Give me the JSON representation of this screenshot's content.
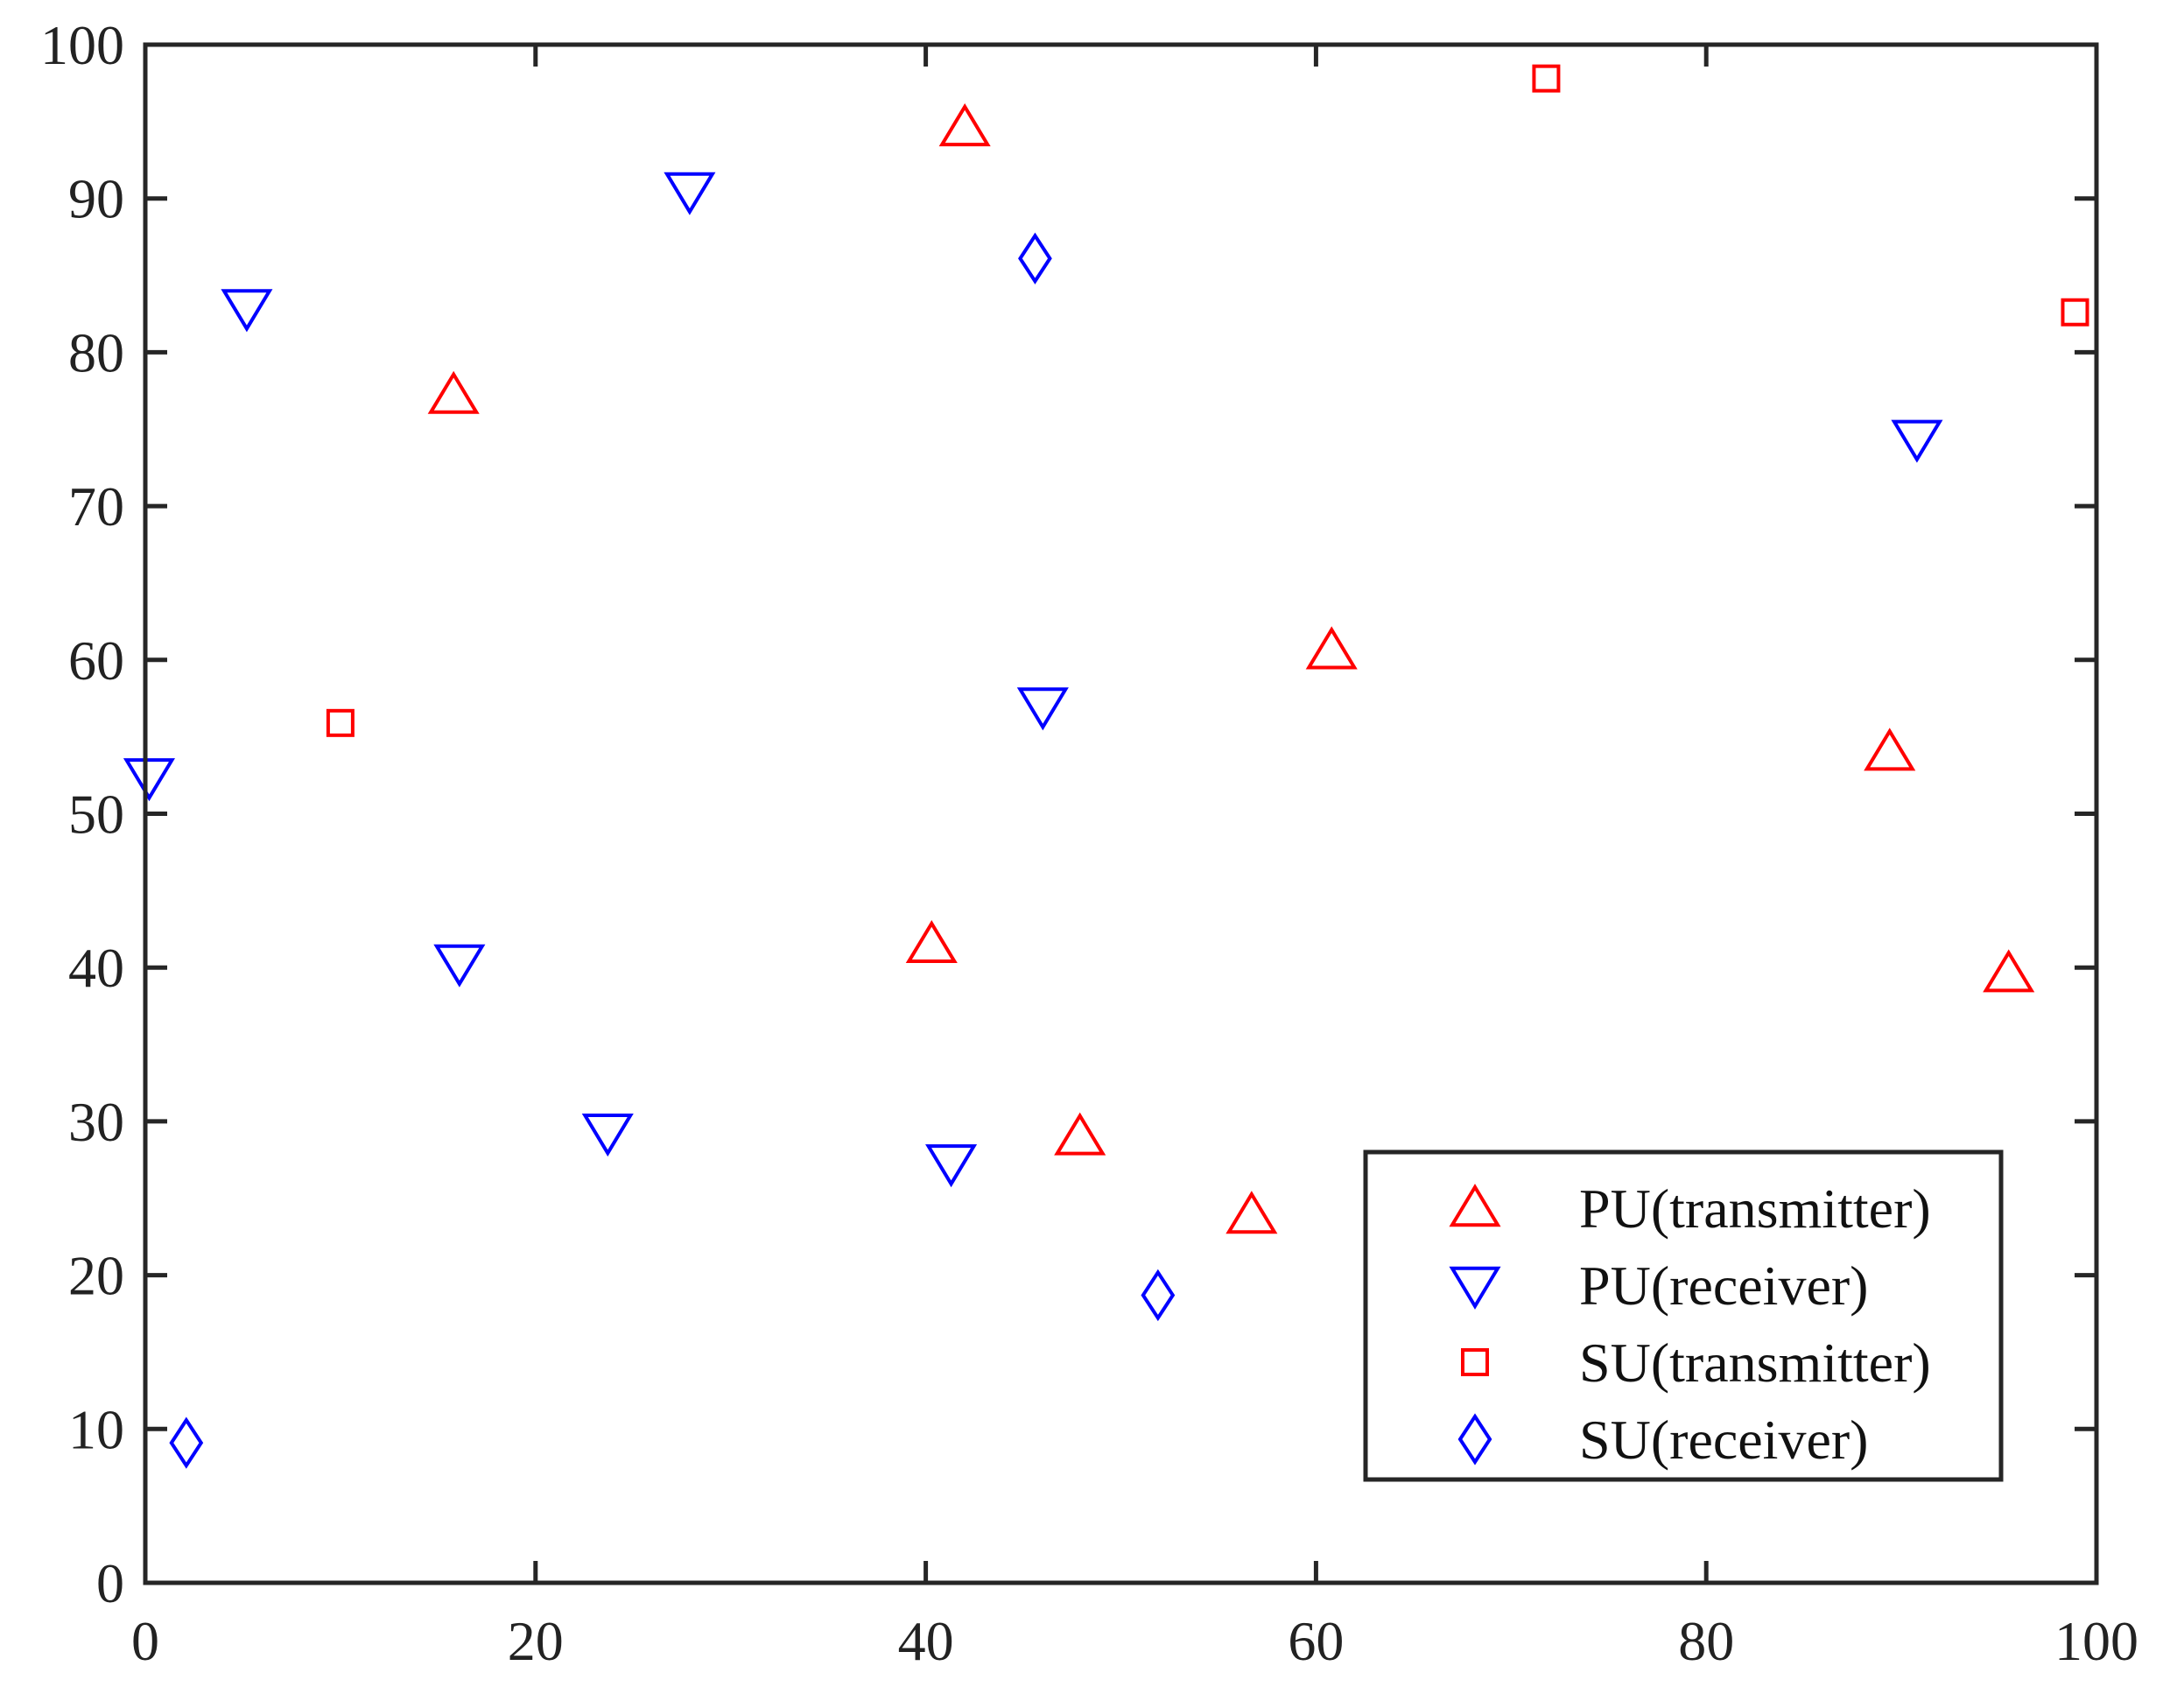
{
  "chart_data": {
    "type": "scatter",
    "title": "",
    "xlabel": "",
    "ylabel": "",
    "xlim": [
      0,
      100
    ],
    "ylim": [
      0,
      100
    ],
    "x_ticks": [
      "0",
      "20",
      "40",
      "60",
      "80",
      "100"
    ],
    "y_ticks": [
      "0",
      "10",
      "20",
      "30",
      "40",
      "50",
      "60",
      "70",
      "80",
      "90",
      "100"
    ],
    "grid": false,
    "box": true,
    "legend_position": "bottom-right",
    "series": [
      {
        "name": "PU(transmitter)",
        "marker": "triangle-up",
        "color": "#ff0000",
        "points": [
          [
            15.8,
            77.2
          ],
          [
            42.0,
            94.6
          ],
          [
            40.3,
            41.5
          ],
          [
            47.9,
            29.0
          ],
          [
            56.7,
            23.9
          ],
          [
            60.8,
            60.6
          ],
          [
            89.4,
            54.0
          ],
          [
            95.5,
            39.6
          ]
        ]
      },
      {
        "name": "PU(receiver)",
        "marker": "triangle-down",
        "color": "#0000ff",
        "points": [
          [
            0.2,
            52.4
          ],
          [
            5.2,
            82.9
          ],
          [
            16.1,
            40.3
          ],
          [
            23.7,
            29.3
          ],
          [
            27.9,
            90.5
          ],
          [
            41.3,
            27.3
          ],
          [
            46.0,
            57.0
          ],
          [
            90.8,
            74.4
          ]
        ]
      },
      {
        "name": "SU(transmitter)",
        "marker": "square",
        "color": "#ff0000",
        "points": [
          [
            10.0,
            55.9
          ],
          [
            71.8,
            97.8
          ],
          [
            98.9,
            82.6
          ]
        ]
      },
      {
        "name": "SU(receiver)",
        "marker": "diamond",
        "color": "#0000ff",
        "points": [
          [
            2.1,
            9.1
          ],
          [
            45.6,
            86.1
          ],
          [
            51.9,
            18.7
          ]
        ]
      }
    ]
  }
}
